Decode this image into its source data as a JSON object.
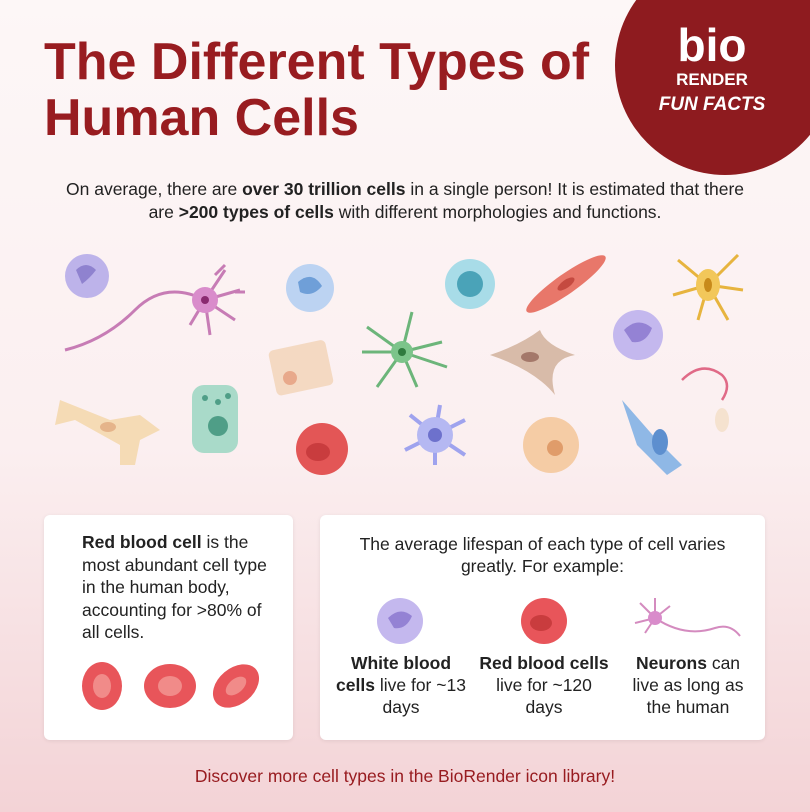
{
  "title": [
    "The Different Types of",
    "Human Cells"
  ],
  "logo": {
    "brand_top": "bio",
    "brand_bottom": "RENDER",
    "tagline": "FUN FACTS"
  },
  "intro": {
    "part1": "On average, there are ",
    "bold1": "over 30 trillion cells",
    "part2": " in a single person! It is estimated that there are ",
    "bold2": ">200 types of cells",
    "part3": " with different morphologies and functions."
  },
  "abundance_card": {
    "bold": "Red blood cell",
    "text": " is the most abundant cell type in the human body, accounting for >80% of all cells."
  },
  "lifespan_card": {
    "heading": "The average lifespan of each type of cell varies greatly. For example:",
    "items": [
      {
        "bold": "White blood cells",
        "text": " live for ~13 days"
      },
      {
        "bold": "Red blood cells",
        "text": " live for ~120 days"
      },
      {
        "bold": "Neurons",
        "text": " can live as long as the human"
      }
    ]
  },
  "footer": "Discover more cell types in the BioRender icon library!"
}
